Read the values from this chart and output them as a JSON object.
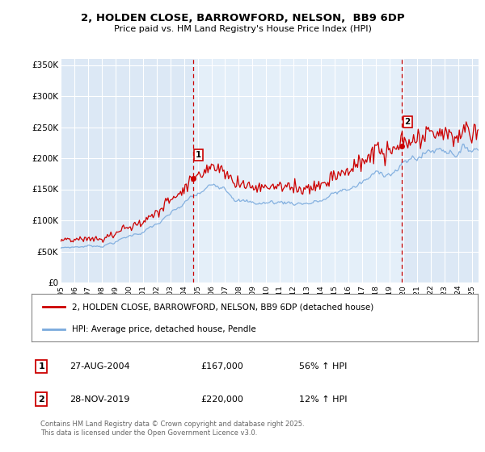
{
  "title": "2, HOLDEN CLOSE, BARROWFORD, NELSON,  BB9 6DP",
  "subtitle": "Price paid vs. HM Land Registry's House Price Index (HPI)",
  "xlim": [
    1995.0,
    2025.5
  ],
  "ylim": [
    0,
    360000
  ],
  "yticks": [
    0,
    50000,
    100000,
    150000,
    200000,
    250000,
    300000,
    350000
  ],
  "ytick_labels": [
    "£0",
    "£50K",
    "£100K",
    "£150K",
    "£200K",
    "£250K",
    "£300K",
    "£350K"
  ],
  "xtick_years": [
    1995,
    1996,
    1997,
    1998,
    1999,
    2000,
    2001,
    2002,
    2003,
    2004,
    2005,
    2006,
    2007,
    2008,
    2009,
    2010,
    2011,
    2012,
    2013,
    2014,
    2015,
    2016,
    2017,
    2018,
    2019,
    2020,
    2021,
    2022,
    2023,
    2024,
    2025
  ],
  "sale1_year": 2004.65,
  "sale1_y": 167000,
  "sale2_year": 2019.91,
  "sale2_y": 220000,
  "line1_color": "#cc0000",
  "line2_color": "#7aaadd",
  "vline_color": "#cc0000",
  "bg_color": "#dce8f5",
  "highlight_color": "#e8f2fc",
  "grid_color": "#ffffff",
  "legend1": "2, HOLDEN CLOSE, BARROWFORD, NELSON, BB9 6DP (detached house)",
  "legend2": "HPI: Average price, detached house, Pendle",
  "annotation1_label": "1",
  "annotation1_date": "27-AUG-2004",
  "annotation1_price": "£167,000",
  "annotation1_hpi": "56% ↑ HPI",
  "annotation2_label": "2",
  "annotation2_date": "28-NOV-2019",
  "annotation2_price": "£220,000",
  "annotation2_hpi": "12% ↑ HPI",
  "footer": "Contains HM Land Registry data © Crown copyright and database right 2025.\nThis data is licensed under the Open Government Licence v3.0."
}
